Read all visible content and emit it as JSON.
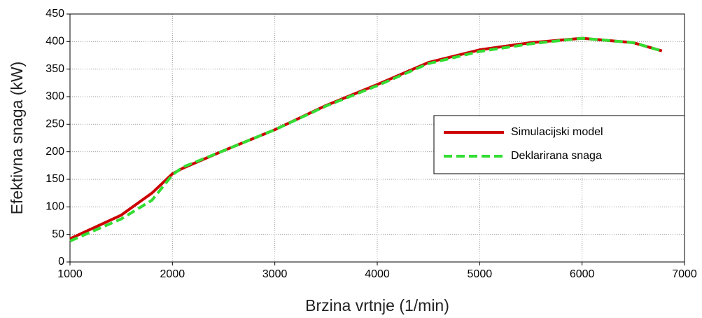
{
  "chart_data": {
    "type": "line",
    "xlabel": "Brzina vrtnje (1/min)",
    "ylabel": "Efektivna snaga (kW)",
    "xlim": [
      1000,
      7000
    ],
    "xticks": [
      1000,
      2000,
      3000,
      4000,
      5000,
      6000,
      7000
    ],
    "ylim": [
      0,
      450
    ],
    "yticks": [
      0,
      50,
      100,
      150,
      200,
      250,
      300,
      350,
      400,
      450
    ],
    "grid": true,
    "legend": "right",
    "series": [
      {
        "name": "Simulacijski model",
        "color": "#cc0000",
        "style": "solid",
        "x": [
          1000,
          1500,
          1800,
          2000,
          2100,
          2500,
          3000,
          3500,
          4000,
          4500,
          5000,
          5500,
          6000,
          6500,
          6780
        ],
        "values": [
          42,
          85,
          125,
          160,
          170,
          202,
          240,
          284,
          322,
          362,
          385,
          398,
          406,
          398,
          383
        ]
      },
      {
        "name": "Deklarirana snaga",
        "color": "#33dd33",
        "style": "dashed",
        "x": [
          1000,
          1500,
          1800,
          2000,
          2100,
          2500,
          3000,
          3500,
          4000,
          4500,
          5000,
          5500,
          6000,
          6500,
          6780
        ],
        "values": [
          38,
          78,
          112,
          158,
          172,
          202,
          240,
          283,
          320,
          360,
          382,
          396,
          406,
          398,
          383
        ]
      }
    ]
  }
}
